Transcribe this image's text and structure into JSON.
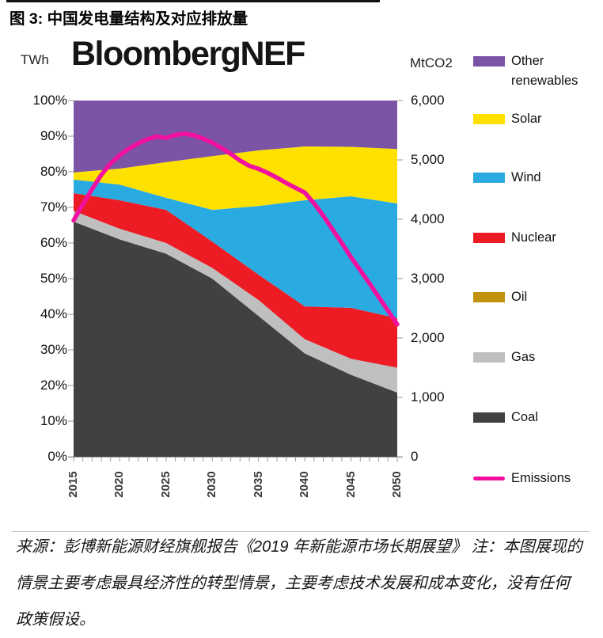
{
  "figure": {
    "title": "图 3: 中国发电量结构及对应排放量",
    "watermark": "BloombergNEF",
    "source_note": "来源：彭博新能源财经旗舰报告《2019 年新能源市场长期展望》 注：本图展现的情景主要考虑最具经济性的转型情景，主要考虑技术发展和成本变化，没有任何政策假设。"
  },
  "chart_data": {
    "type": "area",
    "stacking": "percent",
    "title": "中国发电量结构及对应排放量",
    "x": [
      2015,
      2020,
      2025,
      2030,
      2035,
      2040,
      2045,
      2050
    ],
    "series": [
      {
        "id": "coal",
        "name": "Coal",
        "color": "#414042",
        "values": [
          66,
          61,
          57,
          50,
          39.5,
          29,
          23,
          18
        ]
      },
      {
        "id": "gas",
        "name": "Gas",
        "color": "#BFBFBF",
        "values": [
          3,
          3,
          3,
          3,
          4.5,
          4,
          4.5,
          7
        ]
      },
      {
        "id": "oil",
        "name": "Oil",
        "color": "#C3920E",
        "values": [
          0,
          0,
          0,
          0,
          0,
          0,
          0,
          0
        ]
      },
      {
        "id": "nuclear",
        "name": "Nuclear",
        "color": "#ED1C24",
        "values": [
          5,
          8,
          9.3,
          7.4,
          7.1,
          9.2,
          14.3,
          13.9
        ]
      },
      {
        "id": "wind",
        "name": "Wind",
        "color": "#29ABE2",
        "values": [
          3.8,
          4.4,
          3.4,
          8.9,
          19.3,
          29.8,
          31.3,
          32.2
        ]
      },
      {
        "id": "solar",
        "name": "Solar",
        "color": "#FFE100",
        "values": [
          2,
          4.5,
          10,
          15.1,
          15.6,
          15.1,
          13.9,
          15.3
        ]
      },
      {
        "id": "other_renewables",
        "name": "Other renewables",
        "color": "#7B54A5",
        "values": [
          20.2,
          19.1,
          17.3,
          15.6,
          14,
          12.9,
          13,
          13.6
        ]
      }
    ],
    "emissions": {
      "name": "Emissions",
      "color": "#F2109F",
      "axis": "right",
      "x": [
        2015,
        2016,
        2017,
        2018,
        2019,
        2020,
        2021,
        2022,
        2023,
        2024,
        2025,
        2026,
        2027,
        2028,
        2029,
        2030,
        2031,
        2032,
        2033,
        2034,
        2035,
        2036,
        2037,
        2038,
        2039,
        2040,
        2041,
        2042,
        2043,
        2044,
        2045,
        2046,
        2047,
        2048,
        2049,
        2050
      ],
      "values": [
        3980,
        4250,
        4510,
        4750,
        4940,
        5080,
        5190,
        5280,
        5350,
        5395,
        5370,
        5420,
        5440,
        5415,
        5360,
        5290,
        5200,
        5100,
        4990,
        4900,
        4850,
        4780,
        4700,
        4610,
        4530,
        4450,
        4270,
        4060,
        3830,
        3600,
        3360,
        3140,
        2920,
        2690,
        2460,
        2230
      ]
    },
    "left_axis": {
      "unit": "TWh",
      "range": [
        0,
        100
      ],
      "tick_labels": [
        "100%",
        "90%",
        "80%",
        "70%",
        "60%",
        "50%",
        "40%",
        "30%",
        "20%",
        "10%",
        "0%"
      ]
    },
    "right_axis": {
      "unit": "MtCO2",
      "range": [
        0,
        6000
      ],
      "tick_labels": [
        "6,000",
        "5,000",
        "4,000",
        "3,000",
        "2,000",
        "1,000",
        "0"
      ]
    },
    "x_tick_labels": [
      "2015",
      "2020",
      "2025",
      "2030",
      "2035",
      "2040",
      "2045",
      "2050"
    ],
    "legend": [
      {
        "label": "Other renewables",
        "color": "#7B54A5",
        "type": "area"
      },
      {
        "label": "Solar",
        "color": "#FFE100",
        "type": "area"
      },
      {
        "label": "Wind",
        "color": "#29ABE2",
        "type": "area"
      },
      {
        "label": "Nuclear",
        "color": "#ED1C24",
        "type": "area"
      },
      {
        "label": "Oil",
        "color": "#C3920E",
        "type": "area"
      },
      {
        "label": "Gas",
        "color": "#BFBFBF",
        "type": "area"
      },
      {
        "label": "Coal",
        "color": "#414042",
        "type": "area"
      },
      {
        "label": "Emissions",
        "color": "#F2109F",
        "type": "line"
      }
    ],
    "legend_position": "right",
    "grid": false
  }
}
